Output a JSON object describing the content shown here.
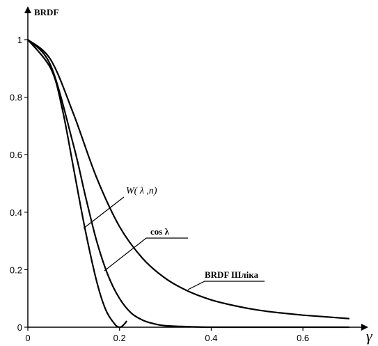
{
  "chart_data": {
    "type": "line",
    "ylabel": "BRDF",
    "xlabel": "γ",
    "xlim": [
      0,
      0.7
    ],
    "ylim": [
      0,
      1
    ],
    "x_ticks": [
      "0",
      "0.2",
      "0.4",
      "0.6"
    ],
    "y_ticks": [
      "0",
      "0.2",
      "0.4",
      "0.6",
      "0.8",
      "1"
    ],
    "grid": false,
    "series": [
      {
        "name": "BRDF Шліка",
        "x": [
          0,
          0.05,
          0.1,
          0.15,
          0.2,
          0.25,
          0.3,
          0.35,
          0.4,
          0.45,
          0.5,
          0.55,
          0.6,
          0.65,
          0.7
        ],
        "y": [
          1.0,
          0.93,
          0.74,
          0.52,
          0.35,
          0.24,
          0.17,
          0.125,
          0.095,
          0.075,
          0.06,
          0.05,
          0.042,
          0.036,
          0.03
        ]
      },
      {
        "name": "cos λ",
        "x": [
          0,
          0.05,
          0.1,
          0.125,
          0.15,
          0.175,
          0.2,
          0.225,
          0.25,
          0.275,
          0.3,
          0.35,
          0.4,
          0.5,
          0.6,
          0.7
        ],
        "y": [
          1.0,
          0.91,
          0.63,
          0.46,
          0.3,
          0.18,
          0.1,
          0.05,
          0.025,
          0.012,
          0.005,
          0.002,
          0.0,
          0.0,
          0.0,
          0.0
        ]
      },
      {
        "name": "W( λ ,n)",
        "x": [
          0,
          0.05,
          0.075,
          0.1,
          0.125,
          0.15,
          0.17,
          0.19,
          0.2,
          0.205,
          0.21,
          0.215
        ],
        "y": [
          1.0,
          0.9,
          0.76,
          0.55,
          0.34,
          0.16,
          0.06,
          0.01,
          0.0,
          0.003,
          0.01,
          0.02
        ]
      }
    ],
    "annotations": [
      {
        "series": 2,
        "text_main": "W( λ ,n)",
        "at": [
          0.12,
          0.38
        ]
      },
      {
        "series": 1,
        "text_main": "cos λ",
        "at": [
          0.155,
          0.31
        ]
      },
      {
        "series": 0,
        "text_main": "BRDF Шліка",
        "at": [
          0.265,
          0.2
        ]
      }
    ]
  }
}
